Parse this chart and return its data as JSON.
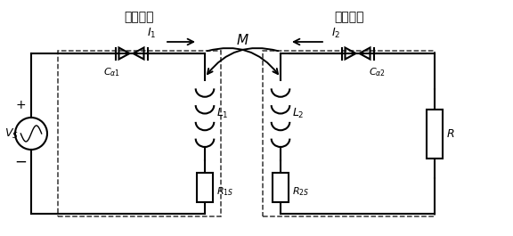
{
  "bg_color": "#ffffff",
  "line_color": "#000000",
  "text_color": "#000000",
  "fig_width": 5.76,
  "fig_height": 2.65,
  "dpi": 100,
  "label_tx": "发射电路",
  "label_rx": "接收电路",
  "label_M": "$M$",
  "label_I1": "$I_1$",
  "label_I2": "$I_2$",
  "label_Ca1": "$C_{\\alpha 1}$",
  "label_Ca2": "$C_{\\alpha 2}$",
  "label_L1": "$L_1$",
  "label_L2": "$L_2$",
  "label_R1s": "$R_{1S}$",
  "label_R2s": "$R_{2S}$",
  "label_Vs": "$V_S$",
  "label_R": "$R$",
  "label_plus": "+",
  "label_minus": "−"
}
